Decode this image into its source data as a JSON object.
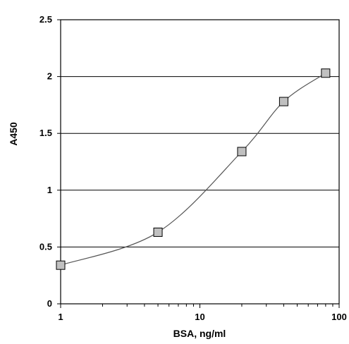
{
  "chart_data": {
    "type": "scatter",
    "xlabel": "BSA, ng/ml",
    "ylabel": "A450",
    "x_scale": "log",
    "xlim": [
      1,
      100
    ],
    "ylim": [
      0,
      2.5
    ],
    "x_ticks": [
      {
        "value": 1,
        "label": "1"
      },
      {
        "value": 10,
        "label": "10"
      },
      {
        "value": 100,
        "label": "100"
      }
    ],
    "y_ticks": [
      {
        "value": 0,
        "label": "0"
      },
      {
        "value": 0.5,
        "label": "0.5"
      },
      {
        "value": 1,
        "label": "1"
      },
      {
        "value": 1.5,
        "label": "1.5"
      },
      {
        "value": 2,
        "label": "2"
      },
      {
        "value": 2.5,
        "label": "2.5"
      }
    ],
    "grid": "horizontal",
    "smooth_line": true,
    "series": [
      {
        "x": [
          1,
          5,
          20,
          40,
          80
        ],
        "y": [
          0.34,
          0.63,
          1.34,
          1.78,
          2.03
        ],
        "marker": "square",
        "marker_color": "#c0c0c0",
        "line_color": "#555555"
      }
    ]
  }
}
